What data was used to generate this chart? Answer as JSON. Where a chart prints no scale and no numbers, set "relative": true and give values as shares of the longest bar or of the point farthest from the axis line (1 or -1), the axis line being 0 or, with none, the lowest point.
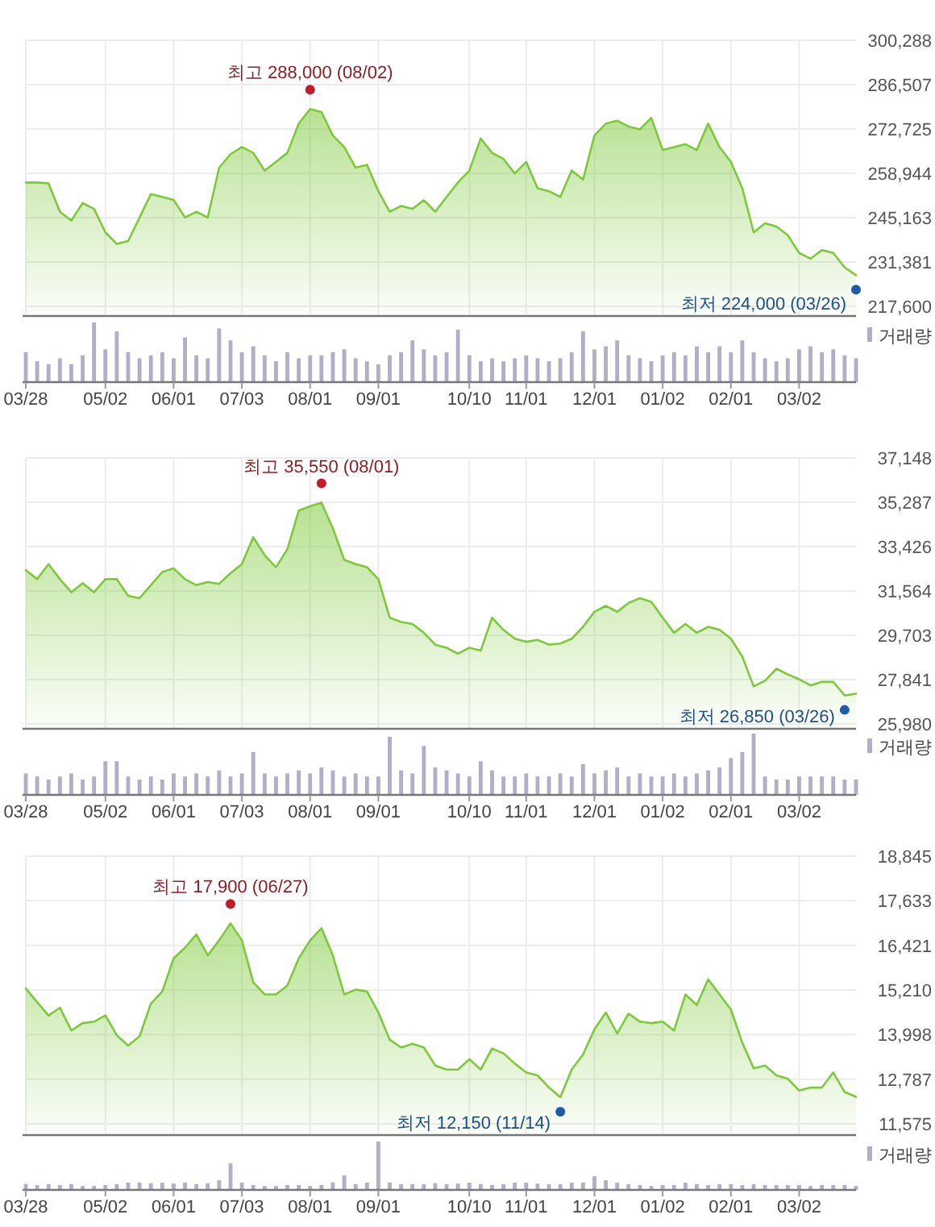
{
  "chart_data": [
    {
      "type": "area",
      "color": "#7dc93a",
      "grid": true,
      "tick_labels": "y",
      "categories": [
        null,
        null,
        null,
        null,
        null,
        null,
        null,
        null,
        null,
        null,
        null,
        null,
        null,
        null,
        null,
        null,
        null,
        null,
        null,
        null,
        null,
        null,
        null,
        null,
        null,
        null,
        null,
        null,
        null,
        null,
        null,
        null,
        null,
        null,
        null,
        null,
        null,
        null,
        null,
        null,
        null,
        null,
        null,
        null,
        null,
        null,
        null,
        null,
        null,
        null,
        null,
        null,
        null,
        null,
        null,
        null,
        null,
        null,
        null,
        null,
        null,
        null,
        null,
        null,
        null,
        null,
        null,
        null,
        null,
        null,
        null,
        null,
        null,
        null
      ],
      "values": [
        256100,
        256100,
        255800,
        247000,
        244300,
        249700,
        247900,
        240600,
        237000,
        237900,
        245200,
        252500,
        251600,
        250700,
        245200,
        247000,
        245200,
        260700,
        264900,
        267100,
        265300,
        259800,
        262500,
        265300,
        274400,
        278900,
        278000,
        270700,
        267100,
        260700,
        261600,
        253400,
        247000,
        248800,
        247900,
        250600,
        247000,
        251600,
        256100,
        259800,
        269800,
        265300,
        263400,
        258900,
        262500,
        254300,
        253400,
        251600,
        259800,
        257000,
        270700,
        274400,
        275300,
        273500,
        272600,
        276200,
        266200,
        267100,
        268000,
        266200,
        274400,
        267100,
        262500,
        254300,
        240600,
        243400,
        242400,
        239700,
        234200,
        232400,
        235100,
        234200,
        229700,
        227300
      ],
      "ylim": [
        214600,
        300288
      ],
      "yticks": [
        {
          "value": 217600,
          "label": "217,600"
        },
        {
          "value": 231381,
          "label": "231,381"
        },
        {
          "value": 245163,
          "label": "245,163"
        },
        {
          "value": 258944,
          "label": "258,944"
        },
        {
          "value": 272725,
          "label": "272,725"
        },
        {
          "value": 286507,
          "label": "286,507"
        },
        {
          "value": 300288,
          "label": "300,288"
        }
      ],
      "annotations": [
        "최고 288,000 (08/02)",
        "최저 224,000 (03/26)"
      ]
    },
    {
      "type": "bar",
      "relative": true,
      "tick_labels": "x",
      "legend": "top right",
      "categories": [
        "03/28",
        null,
        null,
        null,
        null,
        null,
        null,
        "05/02",
        null,
        null,
        null,
        null,
        null,
        "06/01",
        null,
        null,
        null,
        null,
        null,
        "07/03",
        null,
        null,
        null,
        null,
        null,
        "08/01",
        null,
        null,
        null,
        null,
        null,
        "09/01",
        null,
        null,
        null,
        null,
        null,
        null,
        null,
        "10/10",
        null,
        null,
        null,
        null,
        "11/01",
        null,
        null,
        null,
        null,
        null,
        "12/01",
        null,
        null,
        null,
        null,
        null,
        "01/02",
        null,
        null,
        null,
        null,
        null,
        "02/01",
        null,
        null,
        null,
        null,
        null,
        "03/02",
        null,
        null,
        null,
        null,
        null
      ],
      "series": [
        {
          "name": "거래량",
          "color": "#b3aec8",
          "values": [
            0.5,
            0.35,
            0.3,
            0.4,
            0.3,
            0.45,
            1,
            0.55,
            0.85,
            0.5,
            0.4,
            0.45,
            0.5,
            0.4,
            0.75,
            0.45,
            0.4,
            0.9,
            0.7,
            0.5,
            0.6,
            0.45,
            0.35,
            0.5,
            0.4,
            0.45,
            0.45,
            0.5,
            0.55,
            0.4,
            0.35,
            0.3,
            0.45,
            0.5,
            0.7,
            0.55,
            0.45,
            0.5,
            0.88,
            0.45,
            0.35,
            0.4,
            0.35,
            0.4,
            0.45,
            0.4,
            0.35,
            0.4,
            0.5,
            0.85,
            0.55,
            0.6,
            0.7,
            0.45,
            0.4,
            0.35,
            0.45,
            0.5,
            0.45,
            0.6,
            0.5,
            0.6,
            0.5,
            0.7,
            0.5,
            0.4,
            0.35,
            0.4,
            0.55,
            0.6,
            0.5,
            0.55,
            0.45,
            0.4
          ]
        }
      ]
    },
    {
      "type": "area",
      "color": "#7dc93a",
      "grid": true,
      "tick_labels": "y",
      "categories": [
        null,
        null,
        null,
        null,
        null,
        null,
        null,
        null,
        null,
        null,
        null,
        null,
        null,
        null,
        null,
        null,
        null,
        null,
        null,
        null,
        null,
        null,
        null,
        null,
        null,
        null,
        null,
        null,
        null,
        null,
        null,
        null,
        null,
        null,
        null,
        null,
        null,
        null,
        null,
        null,
        null,
        null,
        null,
        null,
        null,
        null,
        null,
        null,
        null,
        null,
        null,
        null,
        null,
        null,
        null,
        null,
        null,
        null,
        null,
        null,
        null,
        null,
        null,
        null,
        null,
        null,
        null,
        null,
        null,
        null,
        null,
        null,
        null,
        null
      ],
      "values": [
        32440,
        32060,
        32690,
        32060,
        31510,
        31890,
        31510,
        32060,
        32060,
        31360,
        31260,
        31810,
        32360,
        32510,
        32060,
        31810,
        31940,
        31860,
        32310,
        32690,
        33820,
        33070,
        32560,
        33320,
        34940,
        35120,
        35270,
        34190,
        32870,
        32690,
        32560,
        32060,
        30440,
        30260,
        30180,
        29810,
        29310,
        29180,
        28930,
        29180,
        29060,
        30440,
        29930,
        29560,
        29430,
        29510,
        29310,
        29360,
        29560,
        30060,
        30690,
        30940,
        30690,
        31060,
        31260,
        31110,
        30440,
        29810,
        30180,
        29810,
        30060,
        29930,
        29560,
        28810,
        27560,
        27800,
        28300,
        28060,
        27860,
        27600,
        27750,
        27750,
        27180,
        27250
      ],
      "ylim": [
        25780,
        37148
      ],
      "yticks": [
        {
          "value": 25980,
          "label": "25,980"
        },
        {
          "value": 27841,
          "label": "27,841"
        },
        {
          "value": 29703,
          "label": "29,703"
        },
        {
          "value": 31564,
          "label": "31,564"
        },
        {
          "value": 33426,
          "label": "33,426"
        },
        {
          "value": 35287,
          "label": "35,287"
        },
        {
          "value": 37148,
          "label": "37,148"
        }
      ],
      "annotations": [
        "최고 35,550 (08/01)",
        "최저 26,850 (03/26)"
      ]
    },
    {
      "type": "bar",
      "relative": true,
      "tick_labels": "x",
      "legend": "top right",
      "categories": [
        "03/28",
        null,
        null,
        null,
        null,
        null,
        null,
        "05/02",
        null,
        null,
        null,
        null,
        null,
        "06/01",
        null,
        null,
        null,
        null,
        null,
        "07/03",
        null,
        null,
        null,
        null,
        null,
        "08/01",
        null,
        null,
        null,
        null,
        null,
        "09/01",
        null,
        null,
        null,
        null,
        null,
        null,
        null,
        "10/10",
        null,
        null,
        null,
        null,
        "11/01",
        null,
        null,
        null,
        null,
        null,
        "12/01",
        null,
        null,
        null,
        null,
        null,
        "01/02",
        null,
        null,
        null,
        null,
        null,
        "02/01",
        null,
        null,
        null,
        null,
        null,
        "03/02",
        null,
        null,
        null,
        null,
        null
      ],
      "series": [
        {
          "name": "거래량",
          "color": "#b3aec8",
          "values": [
            0.35,
            0.3,
            0.25,
            0.3,
            0.35,
            0.25,
            0.3,
            0.55,
            0.55,
            0.3,
            0.25,
            0.3,
            0.25,
            0.35,
            0.3,
            0.35,
            0.3,
            0.4,
            0.3,
            0.35,
            0.7,
            0.35,
            0.3,
            0.35,
            0.4,
            0.35,
            0.45,
            0.4,
            0.3,
            0.35,
            0.3,
            0.3,
            0.95,
            0.4,
            0.35,
            0.8,
            0.45,
            0.4,
            0.35,
            0.3,
            0.55,
            0.4,
            0.3,
            0.3,
            0.35,
            0.3,
            0.3,
            0.35,
            0.3,
            0.5,
            0.35,
            0.4,
            0.45,
            0.3,
            0.35,
            0.3,
            0.3,
            0.35,
            0.3,
            0.35,
            0.4,
            0.45,
            0.6,
            0.7,
            1,
            0.3,
            0.25,
            0.25,
            0.3,
            0.3,
            0.3,
            0.3,
            0.25,
            0.25
          ]
        }
      ]
    },
    {
      "type": "area",
      "color": "#7dc93a",
      "grid": true,
      "tick_labels": "y",
      "categories": [
        null,
        null,
        null,
        null,
        null,
        null,
        null,
        null,
        null,
        null,
        null,
        null,
        null,
        null,
        null,
        null,
        null,
        null,
        null,
        null,
        null,
        null,
        null,
        null,
        null,
        null,
        null,
        null,
        null,
        null,
        null,
        null,
        null,
        null,
        null,
        null,
        null,
        null,
        null,
        null,
        null,
        null,
        null,
        null,
        null,
        null,
        null,
        null,
        null,
        null,
        null,
        null,
        null,
        null,
        null,
        null,
        null,
        null,
        null,
        null,
        null,
        null,
        null,
        null,
        null,
        null,
        null,
        null,
        null,
        null,
        null,
        null,
        null,
        null
      ],
      "values": [
        15250,
        14880,
        14520,
        14730,
        14110,
        14310,
        14350,
        14520,
        13980,
        13700,
        13950,
        14840,
        15170,
        16070,
        16360,
        16720,
        16150,
        16560,
        17020,
        16560,
        15420,
        15090,
        15090,
        15330,
        16070,
        16560,
        16890,
        16150,
        15090,
        15220,
        15170,
        14600,
        13860,
        13650,
        13750,
        13650,
        13160,
        13050,
        13050,
        13330,
        13050,
        13620,
        13490,
        13210,
        12970,
        12890,
        12560,
        12300,
        13050,
        13460,
        14140,
        14600,
        14030,
        14570,
        14350,
        14310,
        14350,
        14110,
        15090,
        14800,
        15500,
        15090,
        14680,
        13780,
        13080,
        13160,
        12890,
        12800,
        12480,
        12560,
        12560,
        12970,
        12440,
        12310
      ],
      "ylim": [
        11270,
        18845
      ],
      "yticks": [
        {
          "value": 11575,
          "label": "11,575"
        },
        {
          "value": 12787,
          "label": "12,787"
        },
        {
          "value": 13998,
          "label": "13,998"
        },
        {
          "value": 15210,
          "label": "15,210"
        },
        {
          "value": 16421,
          "label": "16,421"
        },
        {
          "value": 17633,
          "label": "17,633"
        },
        {
          "value": 18845,
          "label": "18,845"
        }
      ],
      "annotations": [
        "최고 17,900 (06/27)",
        "최저 12,150 (11/14)"
      ]
    },
    {
      "type": "bar",
      "relative": true,
      "tick_labels": "x",
      "legend": "top right",
      "categories": [
        "03/28",
        null,
        null,
        null,
        null,
        null,
        null,
        "05/02",
        null,
        null,
        null,
        null,
        null,
        "06/01",
        null,
        null,
        null,
        null,
        null,
        "07/03",
        null,
        null,
        null,
        null,
        null,
        "08/01",
        null,
        null,
        null,
        null,
        null,
        "09/01",
        null,
        null,
        null,
        null,
        null,
        null,
        null,
        "10/10",
        null,
        null,
        null,
        null,
        "11/01",
        null,
        null,
        null,
        null,
        null,
        "12/01",
        null,
        null,
        null,
        null,
        null,
        "01/02",
        null,
        null,
        null,
        null,
        null,
        "02/01",
        null,
        null,
        null,
        null,
        null,
        "03/02",
        null,
        null,
        null,
        null,
        null
      ],
      "series": [
        {
          "name": "거래량",
          "color": "#b3aec8",
          "values": [
            0.12,
            0.1,
            0.12,
            0.1,
            0.12,
            0.08,
            0.08,
            0.1,
            0.12,
            0.15,
            0.15,
            0.14,
            0.15,
            0.13,
            0.15,
            0.12,
            0.14,
            0.2,
            0.55,
            0.15,
            0.1,
            0.08,
            0.08,
            0.1,
            0.1,
            0.08,
            0.1,
            0.15,
            0.3,
            0.12,
            0.15,
            1,
            0.15,
            0.12,
            0.12,
            0.12,
            0.14,
            0.12,
            0.13,
            0.15,
            0.12,
            0.1,
            0.12,
            0.15,
            0.15,
            0.13,
            0.12,
            0.12,
            0.15,
            0.15,
            0.28,
            0.2,
            0.15,
            0.12,
            0.1,
            0.08,
            0.1,
            0.1,
            0.15,
            0.12,
            0.1,
            0.12,
            0.12,
            0.1,
            0.12,
            0.1,
            0.1,
            0.1,
            0.1,
            0.08,
            0.1,
            0.1,
            0.1,
            0.08
          ]
        }
      ]
    }
  ]
}
